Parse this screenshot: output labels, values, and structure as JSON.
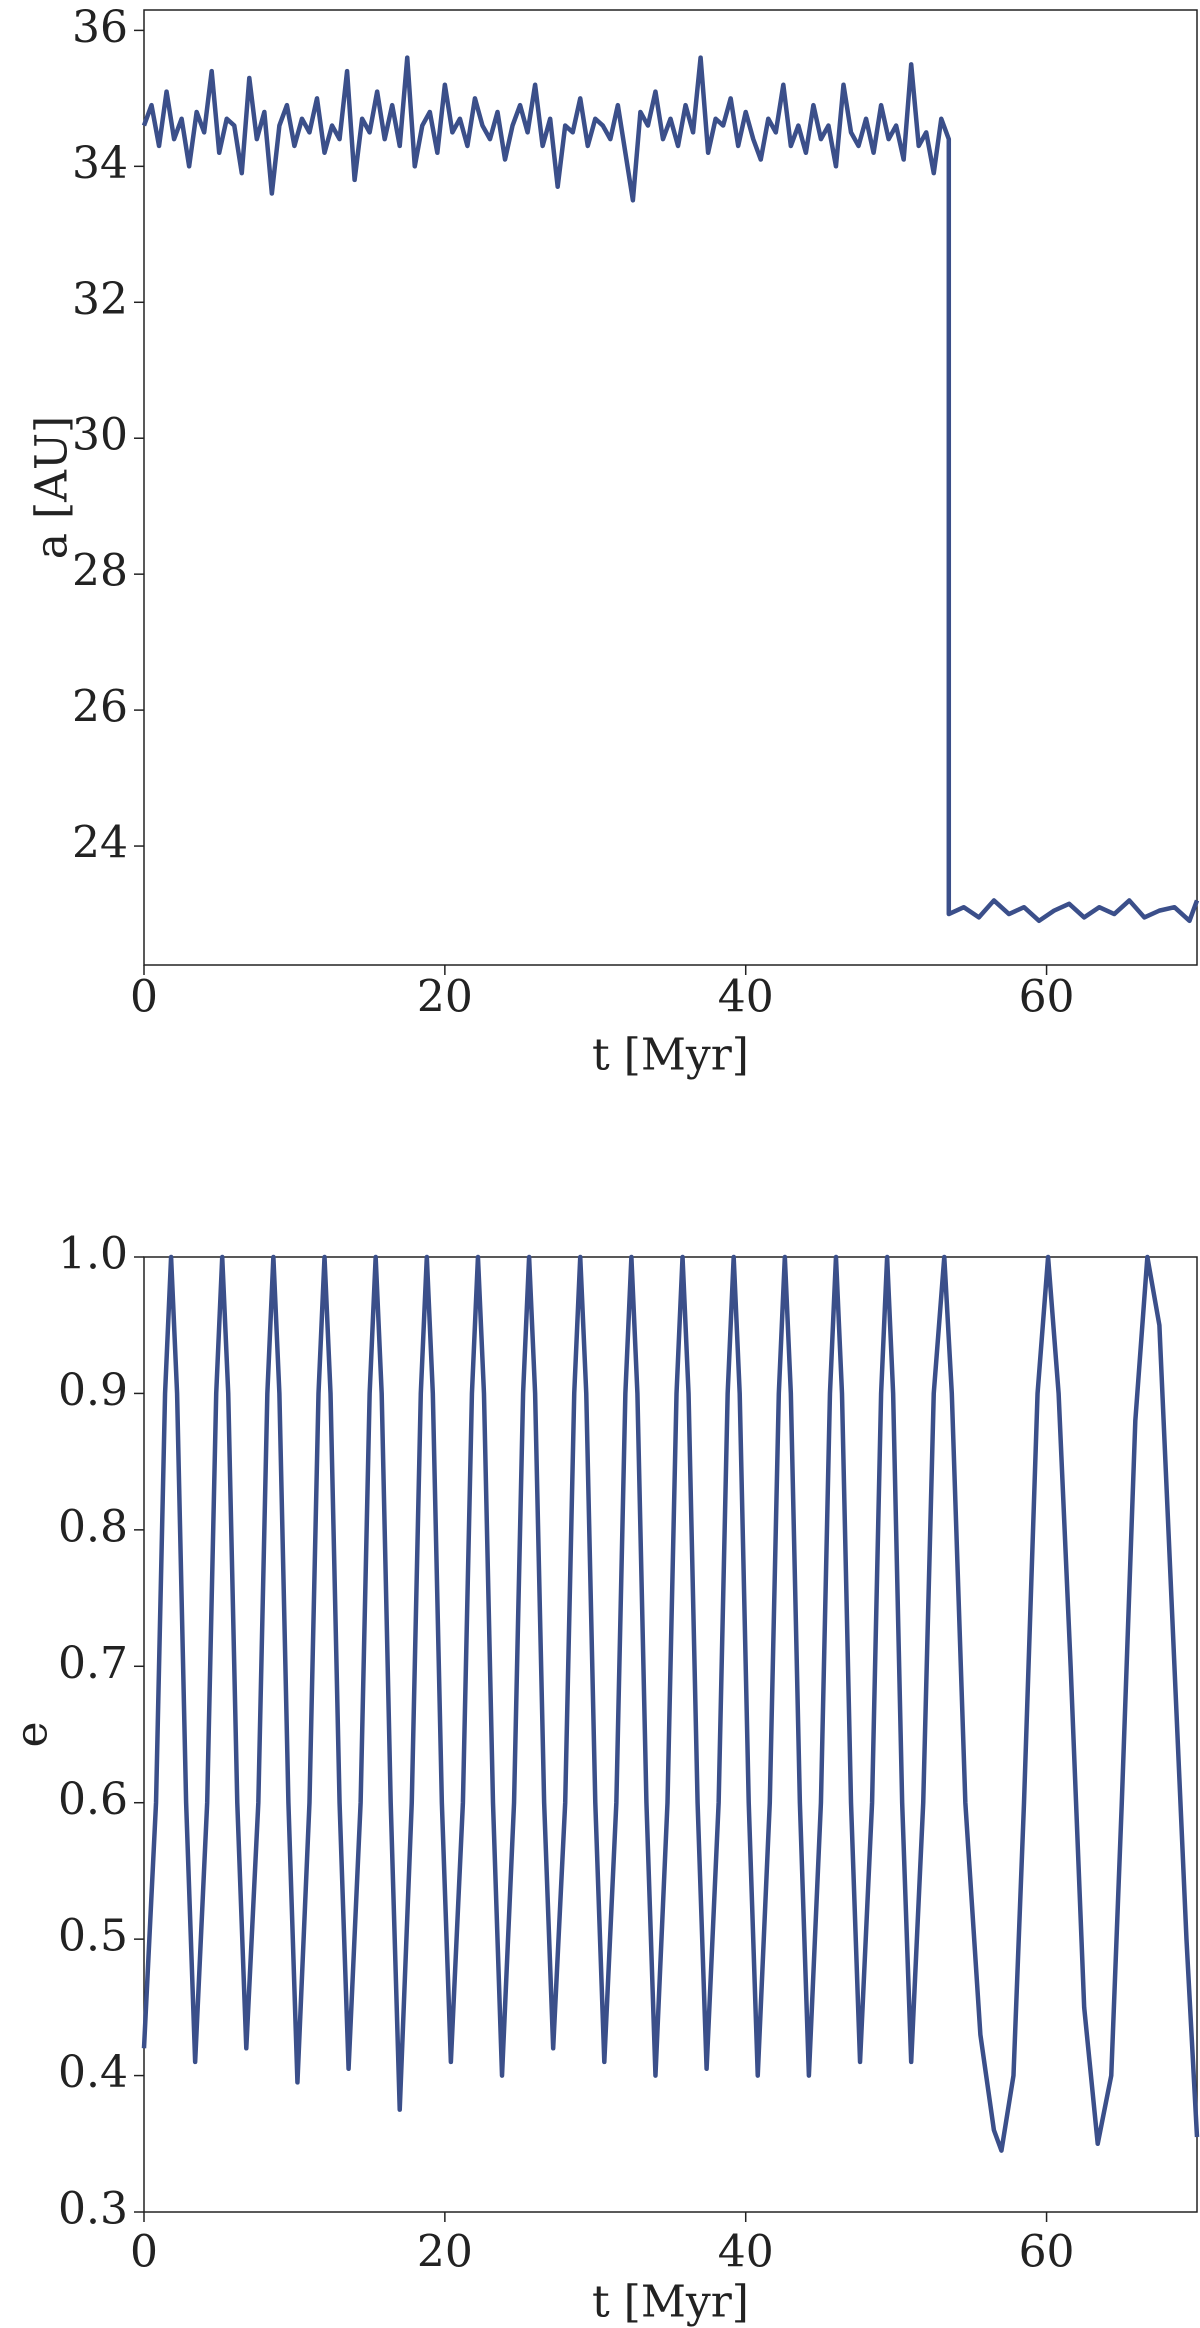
{
  "chart_data": [
    {
      "type": "line",
      "xlabel": "t [Myr]",
      "ylabel": "a [AU]",
      "xlim": [
        0,
        70
      ],
      "ylim": [
        22.25,
        36.3
      ],
      "xticks": [
        0,
        20,
        40,
        60
      ],
      "yticks": [
        24,
        26,
        28,
        30,
        32,
        34,
        36
      ],
      "series": [
        {
          "color": "#3b4f8a",
          "x": [
            0,
            0.5,
            1,
            1.5,
            2,
            2.5,
            3,
            3.5,
            4,
            4.5,
            5,
            5.5,
            6,
            6.5,
            7,
            7.5,
            8,
            8.5,
            9,
            9.5,
            10,
            10.5,
            11,
            11.5,
            12,
            12.5,
            13,
            13.5,
            14,
            14.5,
            15,
            15.5,
            16,
            16.5,
            17,
            17.5,
            18,
            18.5,
            19,
            19.5,
            20,
            20.5,
            21,
            21.5,
            22,
            22.5,
            23,
            23.5,
            24,
            24.5,
            25,
            25.5,
            26,
            26.5,
            27,
            27.5,
            28,
            28.5,
            29,
            29.5,
            30,
            30.5,
            31,
            31.5,
            32,
            32.5,
            33,
            33.5,
            34,
            34.5,
            35,
            35.5,
            36,
            36.5,
            37,
            37.5,
            38,
            38.5,
            39,
            39.5,
            40,
            40.5,
            41,
            41.5,
            42,
            42.5,
            43,
            43.5,
            44,
            44.5,
            45,
            45.5,
            46,
            46.5,
            47,
            47.5,
            48,
            48.5,
            49,
            49.5,
            50,
            50.5,
            51,
            51.5,
            52,
            52.5,
            53,
            53.5,
            53.5,
            54.5,
            55.5,
            56.5,
            57.5,
            58.5,
            59.5,
            60.5,
            61.5,
            62.5,
            63.5,
            64.5,
            65.5,
            66.5,
            67.5,
            68.5,
            69.5,
            70
          ],
          "values": [
            34.6,
            34.9,
            34.3,
            35.1,
            34.4,
            34.7,
            34.0,
            34.8,
            34.5,
            35.4,
            34.2,
            34.7,
            34.6,
            33.9,
            35.3,
            34.4,
            34.8,
            33.6,
            34.6,
            34.9,
            34.3,
            34.7,
            34.5,
            35.0,
            34.2,
            34.6,
            34.4,
            35.4,
            33.8,
            34.7,
            34.5,
            35.1,
            34.4,
            34.9,
            34.3,
            35.6,
            34.0,
            34.6,
            34.8,
            34.2,
            35.2,
            34.5,
            34.7,
            34.3,
            35.0,
            34.6,
            34.4,
            34.8,
            34.1,
            34.6,
            34.9,
            34.5,
            35.2,
            34.3,
            34.7,
            33.7,
            34.6,
            34.5,
            35.0,
            34.3,
            34.7,
            34.6,
            34.4,
            34.9,
            34.2,
            33.5,
            34.8,
            34.6,
            35.1,
            34.4,
            34.7,
            34.3,
            34.9,
            34.5,
            35.6,
            34.2,
            34.7,
            34.6,
            35.0,
            34.3,
            34.8,
            34.4,
            34.1,
            34.7,
            34.5,
            35.2,
            34.3,
            34.6,
            34.2,
            34.9,
            34.4,
            34.6,
            34.0,
            35.2,
            34.5,
            34.3,
            34.7,
            34.2,
            34.9,
            34.4,
            34.6,
            34.1,
            35.5,
            34.3,
            34.5,
            33.9,
            34.7,
            34.4,
            23.0,
            23.1,
            22.95,
            23.2,
            23.0,
            23.1,
            22.9,
            23.05,
            23.15,
            22.95,
            23.1,
            23.0,
            23.2,
            22.95,
            23.05,
            23.1,
            22.9,
            23.2
          ]
        }
      ]
    },
    {
      "type": "line",
      "xlabel": "t [Myr]",
      "ylabel": "e",
      "xlim": [
        0,
        70
      ],
      "ylim": [
        0.3,
        1.0
      ],
      "xticks": [
        0,
        20,
        40,
        60
      ],
      "yticks": [
        0.3,
        0.4,
        0.5,
        0.6,
        0.7,
        0.8,
        0.9,
        {
          "value": 1,
          "label": "1.0"
        }
      ],
      "series": [
        {
          "color": "#3b4f8a",
          "x": [
            0,
            0.8,
            1.4,
            1.8,
            2.2,
            2.8,
            3.4,
            4.2,
            4.8,
            5.2,
            5.6,
            6.2,
            6.8,
            7.6,
            8.2,
            8.6,
            9.0,
            9.6,
            10.2,
            11.0,
            11.6,
            12.0,
            12.4,
            13.0,
            13.6,
            14.4,
            15.0,
            15.4,
            15.8,
            16.4,
            17.0,
            17.8,
            18.4,
            18.8,
            19.2,
            19.8,
            20.4,
            21.2,
            21.8,
            22.2,
            22.6,
            23.2,
            23.8,
            24.6,
            25.2,
            25.6,
            26.0,
            26.6,
            27.2,
            28.0,
            28.6,
            29.0,
            29.4,
            30.0,
            30.6,
            31.4,
            32.0,
            32.4,
            32.8,
            33.4,
            34.0,
            34.8,
            35.4,
            35.8,
            36.2,
            36.8,
            37.4,
            38.2,
            38.8,
            39.2,
            39.6,
            40.2,
            40.8,
            41.6,
            42.2,
            42.6,
            43.0,
            43.6,
            44.2,
            45.0,
            45.6,
            46.0,
            46.4,
            47.0,
            47.6,
            48.4,
            49.0,
            49.4,
            49.8,
            50.4,
            51.0,
            51.8,
            52.5,
            53.2,
            53.7,
            54.6,
            55.6,
            56.5,
            57.0,
            57.8,
            58.5,
            59.4,
            60.1,
            60.8,
            61.6,
            62.5,
            63.4,
            64.3,
            65.0,
            65.9,
            66.7,
            67.5,
            68.5,
            69.3,
            70.0
          ],
          "values": [
            0.42,
            0.6,
            0.9,
            1.0,
            0.9,
            0.6,
            0.41,
            0.6,
            0.9,
            1.0,
            0.9,
            0.6,
            0.42,
            0.6,
            0.9,
            1.0,
            0.9,
            0.6,
            0.395,
            0.6,
            0.9,
            1.0,
            0.9,
            0.6,
            0.405,
            0.6,
            0.9,
            1.0,
            0.9,
            0.6,
            0.375,
            0.6,
            0.9,
            1.0,
            0.9,
            0.6,
            0.41,
            0.6,
            0.9,
            1.0,
            0.9,
            0.6,
            0.4,
            0.6,
            0.9,
            1.0,
            0.9,
            0.6,
            0.42,
            0.6,
            0.9,
            1.0,
            0.9,
            0.6,
            0.41,
            0.6,
            0.9,
            1.0,
            0.9,
            0.6,
            0.4,
            0.6,
            0.9,
            1.0,
            0.9,
            0.6,
            0.405,
            0.6,
            0.9,
            1.0,
            0.9,
            0.6,
            0.4,
            0.6,
            0.9,
            1.0,
            0.9,
            0.6,
            0.4,
            0.6,
            0.9,
            1.0,
            0.9,
            0.6,
            0.41,
            0.6,
            0.9,
            1.0,
            0.9,
            0.6,
            0.41,
            0.6,
            0.9,
            1.0,
            0.9,
            0.6,
            0.43,
            0.36,
            0.345,
            0.4,
            0.6,
            0.9,
            1.0,
            0.9,
            0.7,
            0.45,
            0.35,
            0.4,
            0.6,
            0.88,
            1.0,
            0.95,
            0.7,
            0.5,
            0.355
          ]
        }
      ]
    }
  ]
}
